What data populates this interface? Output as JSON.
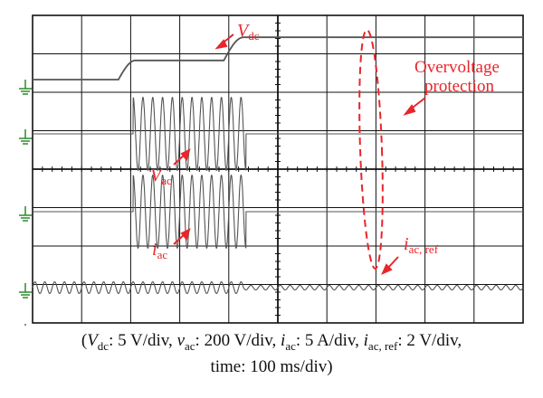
{
  "chart_data": {
    "type": "line",
    "title": "",
    "grid": true,
    "grid_divisions": {
      "x": 10,
      "y": 8
    },
    "time_per_div": "100 ms/div",
    "colors": {
      "trace": "#555555",
      "grid": "#111111",
      "annotation": "#e8262b",
      "ground": "#2a8a2a"
    },
    "series": [
      {
        "name": "Vdc",
        "scale": "5 V/div",
        "type": "step",
        "levels_div": [
          0,
          0.5,
          1.1
        ],
        "transitions_div": [
          [
            1.75,
            2.1
          ],
          [
            3.9,
            4.3
          ]
        ],
        "x_range_div": [
          0,
          10
        ]
      },
      {
        "name": "vac",
        "scale": "200 V/div",
        "type": "sinusoid",
        "amplitude_div": 0.95,
        "period_div": 0.2,
        "active_x_range_div": [
          2.05,
          4.35
        ]
      },
      {
        "name": "iac",
        "scale": "5 A/div",
        "type": "sinusoid",
        "amplitude_div": 0.95,
        "period_div": 0.2,
        "active_x_range_div": [
          2.05,
          4.35
        ]
      },
      {
        "name": "iac,ref",
        "scale": "2 V/div",
        "type": "sinusoid",
        "amplitude_div": 0.15,
        "period_div": 0.2,
        "amplitude_after_protection_div": 0.06,
        "protection_time_div": 4.3
      }
    ],
    "annotations": {
      "vdc": {
        "sym": "V",
        "sub": "dc"
      },
      "vac": {
        "sym": "V",
        "sub": "ac"
      },
      "iac": {
        "sym": "i",
        "sub": "ac"
      },
      "iacref": {
        "sym": "i",
        "sub": "ac, ref"
      },
      "ovp_line1": "Overvoltage",
      "ovp_line2": "protection"
    },
    "caption": {
      "open": "(",
      "vdc_sym": "V",
      "vdc_sub": "dc",
      "vdc_val": ": 5 V/div, ",
      "vac_sym": "v",
      "vac_sub": "ac",
      "vac_val": ": 200 V/div, ",
      "iac_sym": "i",
      "iac_sub": "ac",
      "iac_val": ": 5 A/div, ",
      "iacref_sym": "i",
      "iacref_sub": "ac, ref",
      "iacref_val": ": 2 V/div,",
      "line2": "time: 100 ms/div)"
    }
  }
}
